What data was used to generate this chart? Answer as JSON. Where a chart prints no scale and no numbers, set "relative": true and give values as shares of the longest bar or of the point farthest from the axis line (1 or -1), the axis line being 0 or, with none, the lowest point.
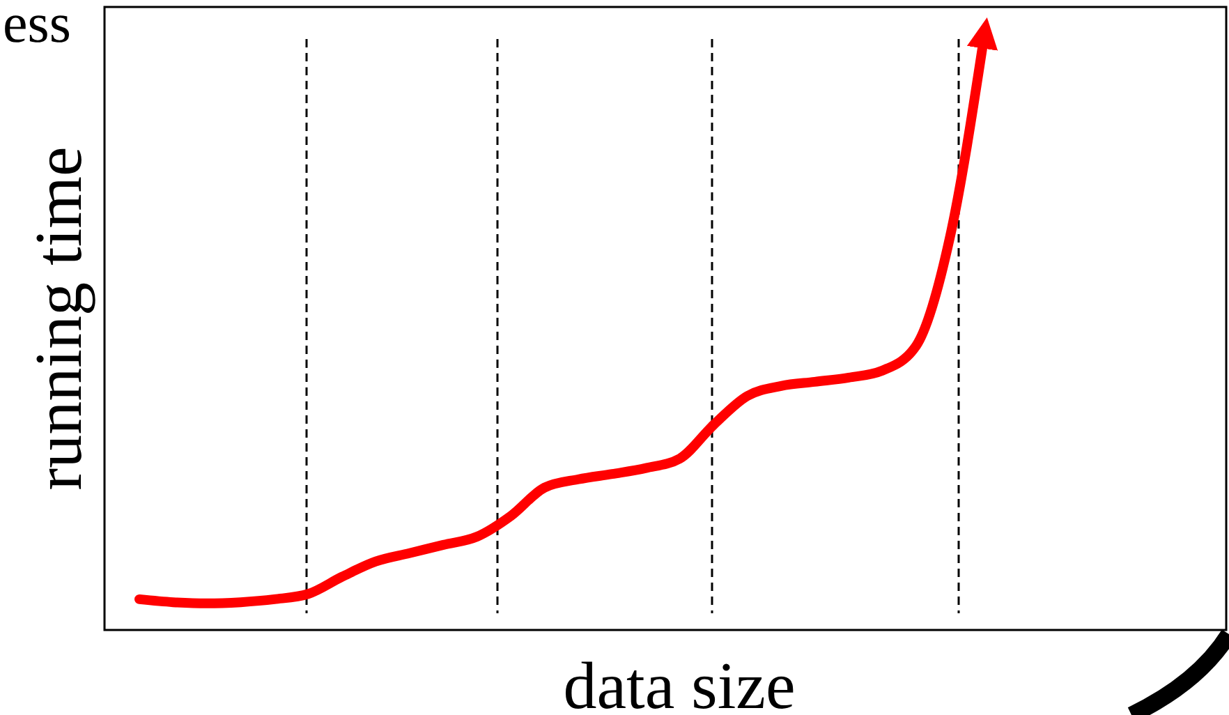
{
  "chart_data": {
    "type": "line",
    "relative": true,
    "xlabel": "data size",
    "ylabel": "running time",
    "annotations": [
      "ess"
    ],
    "categories": [
      null,
      null,
      null,
      null,
      null,
      null,
      null,
      null,
      null,
      null,
      null,
      null,
      null,
      null,
      null,
      null,
      null,
      null,
      null,
      null,
      null,
      null,
      null,
      null,
      null,
      null
    ],
    "series": [
      {
        "color": "#ff0000",
        "values": [
          0.052,
          0.047,
          0.045,
          0.047,
          0.052,
          0.061,
          0.09,
          0.116,
          0.13,
          0.144,
          0.158,
          0.193,
          0.241,
          0.255,
          0.264,
          0.274,
          0.29,
          0.347,
          0.396,
          0.413,
          0.42,
          0.427,
          0.439,
          0.481,
          0.665,
          1
        ]
      }
    ]
  }
}
